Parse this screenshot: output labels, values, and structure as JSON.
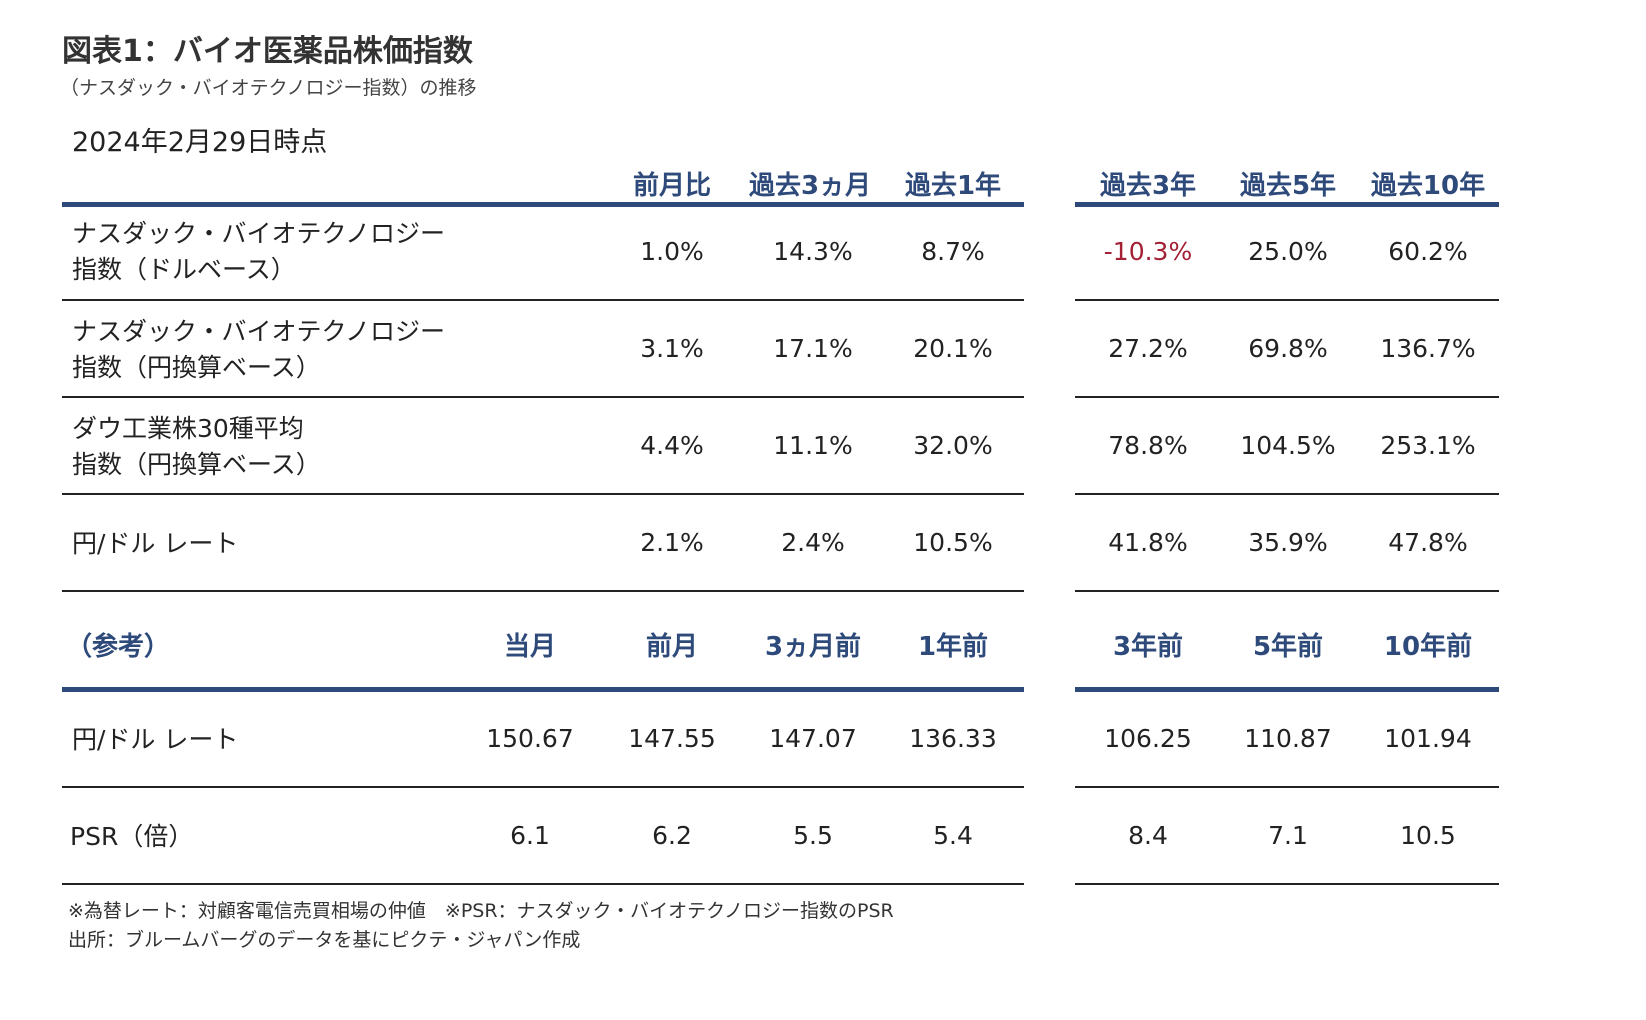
{
  "title": "図表1：バイオ医薬品株価指数",
  "subtitle": "（ナスダック・バイオテクノロジー指数）の推移",
  "as_of": "2024年2月29日時点",
  "table1": {
    "headers": [
      "前月比",
      "過去3ヵ月",
      "過去1年",
      "過去3年",
      "過去5年",
      "過去10年"
    ],
    "rows": [
      {
        "label1": "ナスダック・バイオテクノロジー",
        "label2": "指数（ドルベース）",
        "values": [
          "1.0%",
          "14.3%",
          "8.7%",
          "-10.3%",
          "25.0%",
          "60.2%"
        ]
      },
      {
        "label1": "ナスダック・バイオテクノロジー",
        "label2": "指数（円換算ベース）",
        "values": [
          "3.1%",
          "17.1%",
          "20.1%",
          "27.2%",
          "69.8%",
          "136.7%"
        ]
      },
      {
        "label1": "ダウ工業株30種平均",
        "label2": "指数（円換算ベース）",
        "values": [
          "4.4%",
          "11.1%",
          "32.0%",
          "78.8%",
          "104.5%",
          "253.1%"
        ]
      },
      {
        "label1": "円/ドル レート",
        "label2": "",
        "values": [
          "2.1%",
          "2.4%",
          "10.5%",
          "41.8%",
          "35.9%",
          "47.8%"
        ]
      }
    ]
  },
  "table2": {
    "label": "（参考）",
    "headers": [
      "当月",
      "前月",
      "3ヵ月前",
      "1年前",
      "3年前",
      "5年前",
      "10年前"
    ],
    "rows": [
      {
        "label": "円/ドル レート",
        "values": [
          "150.67",
          "147.55",
          "147.07",
          "136.33",
          "106.25",
          "110.87",
          "101.94"
        ]
      },
      {
        "label": "PSR（倍）",
        "values": [
          "6.1",
          "6.2",
          "5.5",
          "5.4",
          "8.4",
          "7.1",
          "10.5"
        ]
      }
    ]
  },
  "notes": {
    "line1": "※為替レート：対顧客電信売買相場の仲値　※PSR：ナスダック・バイオテクノロジー指数のPSR",
    "line2": "出所：ブルームバーグのデータを基にピクテ・ジャパン作成"
  },
  "colors": {
    "header_blue": "#2E4A7A",
    "negative_red": "#A32035"
  }
}
